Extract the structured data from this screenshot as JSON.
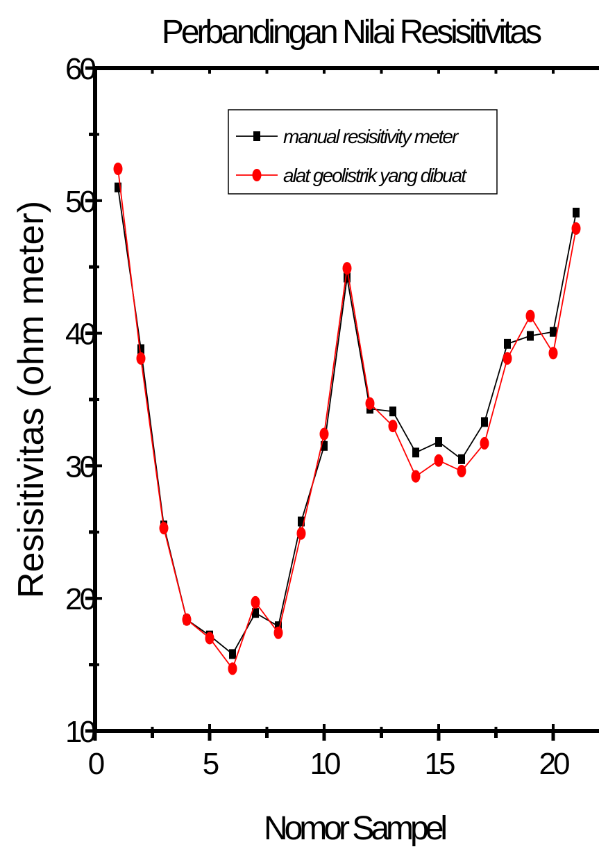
{
  "chart_data": {
    "type": "line",
    "title": "Perbandingan Nilai Resisitivitas",
    "xlabel": "Nomor Sampel",
    "ylabel": "Resisitivitas (ohm meter)",
    "xlim": [
      0,
      22
    ],
    "ylim": [
      10,
      60
    ],
    "xticks": [
      0,
      5,
      10,
      15,
      20
    ],
    "yticks": [
      10,
      20,
      30,
      40,
      50,
      60
    ],
    "legend_position": "top-center",
    "grid": false,
    "x": [
      1,
      2,
      3,
      4,
      5,
      6,
      7,
      8,
      9,
      10,
      11,
      12,
      13,
      14,
      15,
      16,
      17,
      18,
      19,
      20,
      21
    ],
    "series": [
      {
        "name": "manual resisitivity meter",
        "color": "#000000",
        "marker": "square",
        "values": [
          51.0,
          38.8,
          25.5,
          18.4,
          17.2,
          15.8,
          18.9,
          17.9,
          25.8,
          31.5,
          44.2,
          34.3,
          34.1,
          31.0,
          31.8,
          30.5,
          33.3,
          39.2,
          39.8,
          40.1,
          49.1
        ]
      },
      {
        "name": "alat geolistrik yang dibuat",
        "color": "#ff0000",
        "marker": "circle",
        "values": [
          52.4,
          38.1,
          25.3,
          18.4,
          17.0,
          14.7,
          19.7,
          17.4,
          24.9,
          32.4,
          44.9,
          34.7,
          33.0,
          29.2,
          30.4,
          29.6,
          31.7,
          38.1,
          41.3,
          38.5,
          47.9
        ]
      }
    ]
  }
}
